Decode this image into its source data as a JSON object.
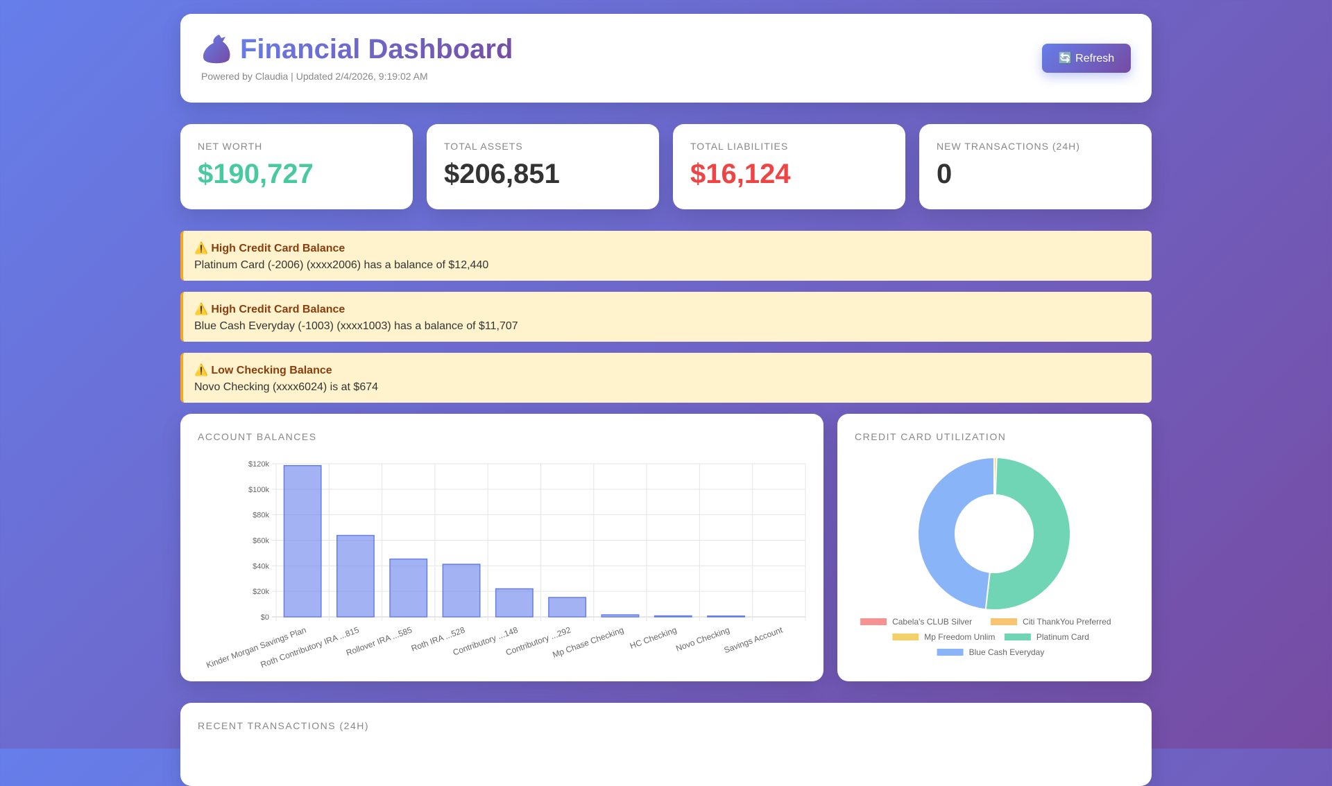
{
  "header": {
    "title": "Financial Dashboard",
    "subtitle": "Powered by Claudia | Updated 2/4/2026, 9:19:02 AM",
    "refresh_label": "🔄 Refresh",
    "icon": "money-bag-icon"
  },
  "stats": [
    {
      "label": "Net Worth",
      "value": "$190,727",
      "color": "#48c9a0"
    },
    {
      "label": "Total Assets",
      "value": "$206,851",
      "color": "#333333"
    },
    {
      "label": "Total Liabilities",
      "value": "$16,124",
      "color": "#ef4444"
    },
    {
      "label": "New Transactions (24h)",
      "value": "0",
      "color": "#333333"
    }
  ],
  "alerts": [
    {
      "title": "⚠️ High Credit Card Balance",
      "message": "Platinum Card (-2006) (xxxx2006) has a balance of $12,440"
    },
    {
      "title": "⚠️ High Credit Card Balance",
      "message": "Blue Cash Everyday (-1003) (xxxx1003) has a balance of $11,707"
    },
    {
      "title": "⚠️ Low Checking Balance",
      "message": "Novo Checking (xxxx6024) is at $674"
    }
  ],
  "chart_data": [
    {
      "type": "bar",
      "title": "Account Balances",
      "categories": [
        "Kinder Morgan Savings Plan",
        "Roth Contributory IRA ...815",
        "Rollover IRA ...585",
        "Roth IRA ...528",
        "Contributory ...148",
        "Contributory ...292",
        "Mp Chase Checking",
        "HC Checking",
        "Novo Checking",
        "Savings Account"
      ],
      "values": [
        118500,
        63800,
        45300,
        41200,
        22000,
        15200,
        1600,
        800,
        674,
        0
      ],
      "ylim": [
        0,
        120000
      ],
      "yticks": [
        "$0",
        "$20k",
        "$40k",
        "$60k",
        "$80k",
        "$100k",
        "$120k"
      ],
      "grid": true,
      "color": "#667eea"
    },
    {
      "type": "doughnut",
      "title": "Credit Card Utilization",
      "labels": [
        "Cabela's CLUB Silver",
        "Citi ThankYou Preferred",
        "Mp Freedom Unlim",
        "Platinum Card",
        "Blue Cash Everyday"
      ],
      "values": [
        0,
        120,
        10,
        12440,
        11707
      ],
      "colors": [
        "#f59393",
        "#f8c471",
        "#f2d16b",
        "#6fd5b4",
        "#8ab4f8"
      ],
      "legend": "bottom"
    }
  ],
  "transactions": {
    "title": "Recent Transactions (24h)"
  }
}
